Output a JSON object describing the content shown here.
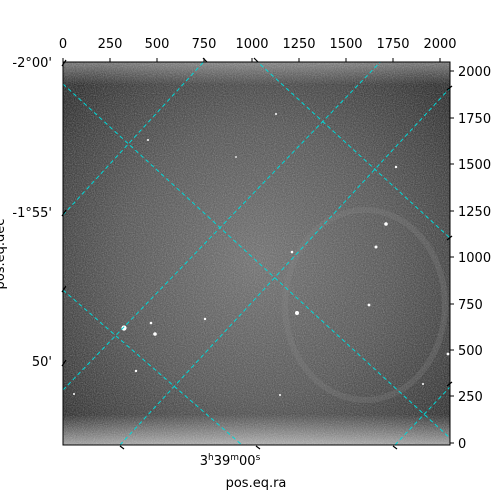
{
  "figure": {
    "x_pixel_ticks": [
      "0",
      "250",
      "500",
      "750",
      "1000",
      "1250",
      "1500",
      "1750",
      "2000"
    ],
    "y_pixel_ticks": [
      "0",
      "250",
      "500",
      "750",
      "1000",
      "1250",
      "1500",
      "1750",
      "2000"
    ],
    "dec_ticks": [
      "-2°00'",
      "-1°55'",
      "50'"
    ],
    "ra_tick": {
      "h": "3",
      "m": "39",
      "s": "00"
    },
    "xlabel": "pos.eq.ra",
    "ylabel": "pos.eq.dec",
    "colors": {
      "grid": "#00d8d8",
      "frame": "#000000",
      "background": "#ffffff"
    }
  }
}
